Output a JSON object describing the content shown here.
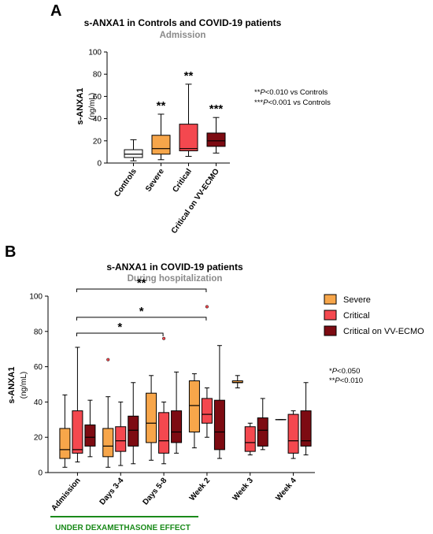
{
  "colors": {
    "controls": "#ffffff",
    "severe": "#f7a64a",
    "critical": "#f4484f",
    "ecmo": "#7d0b12",
    "outlier": "#f4484f",
    "green": "#1a8a1a",
    "subtitle": "#8a8a8a"
  },
  "panel_a": {
    "letter": "A",
    "title": "s-ANXA1 in Controls and COVID-19 patients",
    "subtitle": "Admission",
    "ylabel": "s-ANXA1",
    "yunit": "(ng/mL)",
    "notes": [
      {
        "stars": "**",
        "italic": "P",
        "rest": "<0.010 vs Controls"
      },
      {
        "stars": "***",
        "italic": "P",
        "rest": "<0.001 vs Controls"
      }
    ]
  },
  "panel_b": {
    "letter": "B",
    "title": "s-ANXA1 in COVID-19 patients",
    "subtitle": "During hospitalization",
    "ylabel": "s-ANXA1",
    "yunit": "(ng/mL)",
    "legend": [
      "Severe",
      "Critical",
      "Critical on VV-ECMO"
    ],
    "notes": [
      {
        "stars": "*",
        "italic": "P",
        "rest": "<0.050"
      },
      {
        "stars": "**",
        "italic": "P",
        "rest": "<0.010"
      }
    ],
    "dexamethasone_label": "UNDER DEXAMETHASONE EFFECT"
  },
  "chart_data": [
    {
      "type": "box",
      "title": "s-ANXA1 in Controls and COVID-19 patients",
      "subtitle": "Admission",
      "ylabel": "s-ANXA1 (ng/mL)",
      "ylim": [
        0,
        100
      ],
      "yticks": [
        0,
        20,
        40,
        60,
        80,
        100
      ],
      "categories": [
        "Controls",
        "Severe",
        "Critical",
        "Critical on VV-ECMO"
      ],
      "boxes": [
        {
          "category": "Controls",
          "color": "#ffffff",
          "min": 2,
          "q1": 5,
          "median": 8,
          "q3": 12,
          "max": 21,
          "sig": ""
        },
        {
          "category": "Severe",
          "color": "#f7a64a",
          "min": 3,
          "q1": 8,
          "median": 13,
          "q3": 25,
          "max": 44,
          "sig": "**"
        },
        {
          "category": "Critical",
          "color": "#f4484f",
          "min": 6,
          "q1": 11,
          "median": 13,
          "q3": 35,
          "max": 71,
          "sig": "**"
        },
        {
          "category": "Critical on VV-ECMO",
          "color": "#7d0b12",
          "min": 9,
          "q1": 15,
          "median": 20,
          "q3": 27,
          "max": 41,
          "sig": "***"
        }
      ]
    },
    {
      "type": "box",
      "title": "s-ANXA1 in COVID-19 patients",
      "subtitle": "During hospitalization",
      "ylabel": "s-ANXA1 (ng/mL)",
      "ylim": [
        0,
        100
      ],
      "yticks": [
        0,
        20,
        40,
        60,
        80,
        100
      ],
      "categories": [
        "Admission",
        "Days 3-4",
        "Days 5-8",
        "Week 2",
        "Week 3",
        "Week 4"
      ],
      "series_names": [
        "Severe",
        "Critical",
        "Critical on VV-ECMO"
      ],
      "groups": [
        {
          "category": "Admission",
          "boxes": [
            {
              "series": "Severe",
              "min": 3,
              "q1": 8,
              "median": 13,
              "q3": 25,
              "max": 44,
              "outliers": []
            },
            {
              "series": "Critical",
              "min": 6,
              "q1": 11,
              "median": 13,
              "q3": 35,
              "max": 71,
              "outliers": []
            },
            {
              "series": "Critical on VV-ECMO",
              "min": 9,
              "q1": 15,
              "median": 20,
              "q3": 27,
              "max": 41,
              "outliers": []
            }
          ]
        },
        {
          "category": "Days 3-4",
          "boxes": [
            {
              "series": "Severe",
              "min": 3,
              "q1": 9,
              "median": 15,
              "q3": 25,
              "max": 43,
              "outliers": [
                64
              ]
            },
            {
              "series": "Critical",
              "min": 4,
              "q1": 12,
              "median": 18,
              "q3": 26,
              "max": 40,
              "outliers": []
            },
            {
              "series": "Critical on VV-ECMO",
              "min": 5,
              "q1": 15,
              "median": 24,
              "q3": 32,
              "max": 51,
              "outliers": []
            }
          ]
        },
        {
          "category": "Days 5-8",
          "boxes": [
            {
              "series": "Severe",
              "min": 7,
              "q1": 17,
              "median": 28,
              "q3": 45,
              "max": 55,
              "outliers": []
            },
            {
              "series": "Critical",
              "min": 5,
              "q1": 11,
              "median": 18,
              "q3": 34,
              "max": 40,
              "outliers": [
                76
              ]
            },
            {
              "series": "Critical on VV-ECMO",
              "min": 11,
              "q1": 17,
              "median": 23,
              "q3": 35,
              "max": 57,
              "outliers": []
            }
          ]
        },
        {
          "category": "Week 2",
          "boxes": [
            {
              "series": "Severe",
              "min": 14,
              "q1": 23,
              "median": 38,
              "q3": 52,
              "max": 56,
              "outliers": []
            },
            {
              "series": "Critical",
              "min": 20,
              "q1": 28,
              "median": 33,
              "q3": 42,
              "max": 48,
              "outliers": [
                94
              ]
            },
            {
              "series": "Critical on VV-ECMO",
              "min": 8,
              "q1": 13,
              "median": 23,
              "q3": 41,
              "max": 72,
              "outliers": []
            }
          ]
        },
        {
          "category": "Week 3",
          "boxes": [
            {
              "series": "Severe",
              "min": 48,
              "q1": 51,
              "median": 51,
              "q3": 52,
              "max": 55,
              "outliers": []
            },
            {
              "series": "Critical",
              "min": 10,
              "q1": 12,
              "median": 17,
              "q3": 26,
              "max": 28,
              "outliers": []
            },
            {
              "series": "Critical on VV-ECMO",
              "min": 13,
              "q1": 15,
              "median": 24,
              "q3": 31,
              "max": 42,
              "outliers": []
            }
          ]
        },
        {
          "category": "Week 4",
          "boxes": [
            {
              "series": "Severe",
              "min": 30,
              "q1": 30,
              "median": 30,
              "q3": 30,
              "max": 30,
              "outliers": []
            },
            {
              "series": "Critical",
              "min": 8,
              "q1": 11,
              "median": 18,
              "q3": 33,
              "max": 35,
              "outliers": []
            },
            {
              "series": "Critical on VV-ECMO",
              "min": 10,
              "q1": 15,
              "median": 18,
              "q3": 35,
              "max": 51,
              "outliers": []
            }
          ]
        }
      ],
      "brackets": [
        {
          "from": "Admission",
          "to": "Days 5-8",
          "label": "*"
        },
        {
          "from": "Admission",
          "to": "Week 2",
          "label": "*"
        },
        {
          "from": "Admission",
          "to": "Week 2",
          "label": "**"
        }
      ]
    }
  ]
}
